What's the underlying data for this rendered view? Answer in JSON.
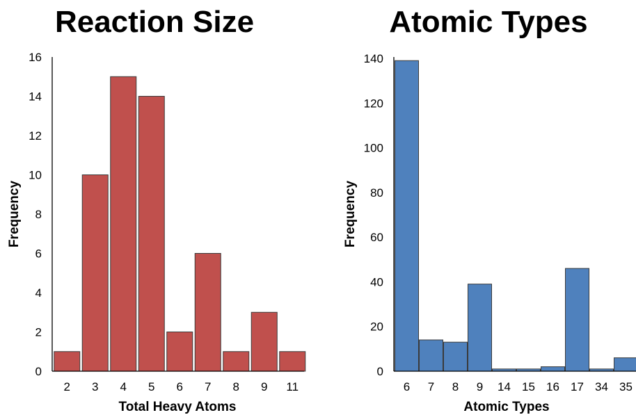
{
  "chart_data": [
    {
      "type": "bar",
      "title": "Reaction Size",
      "xlabel": "Total Heavy Atoms",
      "ylabel": "Frequency",
      "categories": [
        "2",
        "3",
        "4",
        "5",
        "6",
        "7",
        "8",
        "9",
        "11"
      ],
      "values": [
        1,
        10,
        15,
        14,
        2,
        6,
        1,
        3,
        1
      ],
      "ylim": [
        0,
        16
      ],
      "yticks": [
        "0",
        "2",
        "4",
        "6",
        "8",
        "10",
        "12",
        "14",
        "16"
      ],
      "grid": false,
      "color": "#c0504d"
    },
    {
      "type": "bar",
      "title": "Atomic Types",
      "xlabel": "Atomic Types",
      "ylabel": "Frequency",
      "categories": [
        "6",
        "7",
        "8",
        "9",
        "14",
        "15",
        "16",
        "17",
        "34",
        "35"
      ],
      "values": [
        139,
        14,
        13,
        39,
        1,
        1,
        2,
        46,
        1,
        6
      ],
      "ylim": [
        0,
        140
      ],
      "yticks": [
        "0",
        "20",
        "40",
        "60",
        "80",
        "100",
        "120",
        "140"
      ],
      "grid": false,
      "color": "#4f81bd"
    }
  ]
}
